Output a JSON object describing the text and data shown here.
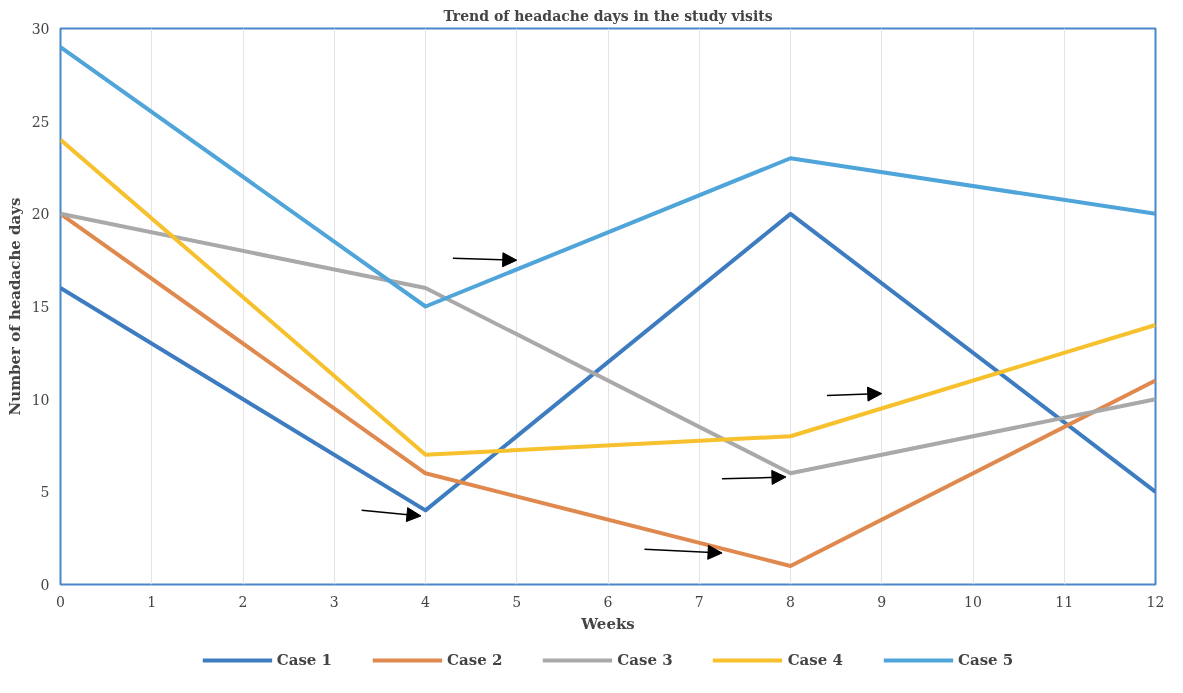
{
  "chart_data": {
    "type": "line",
    "title": "Trend of headache days in the study visits",
    "xlabel": "Weeks",
    "ylabel": "Number of headache days",
    "x": [
      0,
      4,
      8,
      12
    ],
    "series": [
      {
        "name": "Case 1",
        "color": "#3d7cc0",
        "values": [
          16,
          4,
          20,
          5
        ]
      },
      {
        "name": "Case 2",
        "color": "#e0894f",
        "values": [
          20,
          6,
          1,
          11
        ]
      },
      {
        "name": "Case 3",
        "color": "#a9a9a9",
        "values": [
          20,
          16,
          6,
          10
        ]
      },
      {
        "name": "Case 4",
        "color": "#f6c12c",
        "values": [
          24,
          7,
          8,
          14
        ]
      },
      {
        "name": "Case 5",
        "color": "#4fa5da",
        "values": [
          29,
          15,
          23,
          20
        ]
      }
    ],
    "xlim": [
      0,
      12
    ],
    "xticks": [
      0,
      1,
      2,
      3,
      4,
      5,
      6,
      7,
      8,
      9,
      10,
      11,
      12
    ],
    "ylim": [
      0,
      30
    ],
    "yticks": [
      0,
      5,
      10,
      15,
      20,
      25,
      30
    ],
    "grid": "x",
    "legend": "bottom",
    "marker": "none",
    "line_style": "solid"
  }
}
